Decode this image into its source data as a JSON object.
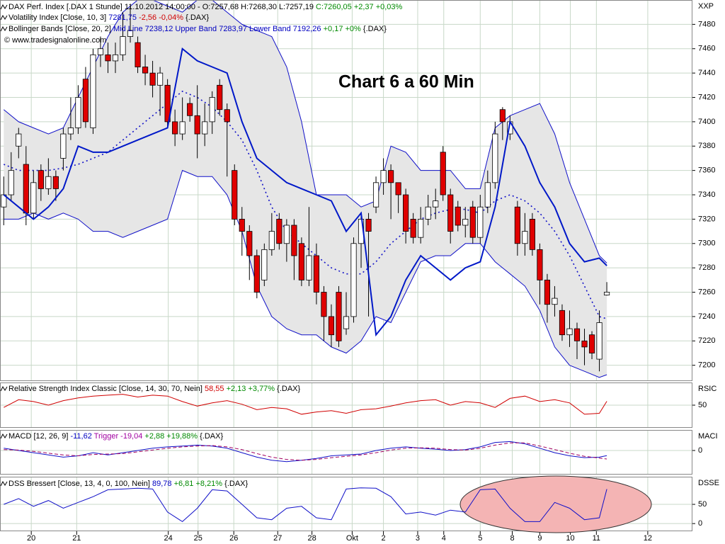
{
  "chart_data": [
    {
      "type": "candlestick",
      "title": "Chart 6 a 60 Min",
      "header": [
        [
          {
            "text": "DAX Perf. Index [.DAX  1 Stunde] 11.10.2012 14:00:00 - O:7257,68 H:7268,30 L:7257,19 ",
            "color": "#000000"
          },
          {
            "text": "C:7260,05 +2,37 +0,03%",
            "color": "#008a00"
          }
        ],
        [
          {
            "text": "Volatility Index [Close, 10, 3] ",
            "color": "#000000"
          },
          {
            "text": "7281,75 ",
            "color": "#0000c0"
          },
          {
            "text": "-2,56 -0,04% ",
            "color": "#d00000"
          },
          {
            "text": "{.DAX}",
            "color": "#000000"
          }
        ],
        [
          {
            "text": "Bollinger Bands [Close, 20, 2] ",
            "color": "#000000"
          },
          {
            "text": "Mid Line 7238,12 Upper Band 7283,97 Lower Band 7192,26 ",
            "color": "#0000c0"
          },
          {
            "text": "+0,17 +0% ",
            "color": "#008a00"
          },
          {
            "text": "{.DAX}",
            "color": "#000000"
          }
        ]
      ],
      "copyright": "© www.tradesignalonline.com",
      "axis_label": "XXP",
      "xlim": [
        -0.5,
        92.5
      ],
      "xticks": [
        {
          "value": 3.7,
          "label": "20"
        },
        {
          "value": 9.8,
          "label": "21"
        },
        {
          "value": 22.1,
          "label": "24"
        },
        {
          "value": 26.1,
          "label": "25"
        },
        {
          "value": 30.9,
          "label": "26"
        },
        {
          "value": 36.8,
          "label": "27"
        },
        {
          "value": 41.4,
          "label": "28"
        },
        {
          "value": 46.8,
          "label": "Okt"
        },
        {
          "value": 51.0,
          "label": "2"
        },
        {
          "value": 55.6,
          "label": "3"
        },
        {
          "value": 59.1,
          "label": "4"
        },
        {
          "value": 64.0,
          "label": "5"
        },
        {
          "value": 68.3,
          "label": "8"
        },
        {
          "value": 72.0,
          "label": "9"
        },
        {
          "value": 76.1,
          "label": "10"
        },
        {
          "value": 79.6,
          "label": "11"
        },
        {
          "value": 86.5,
          "label": "12"
        }
      ],
      "ylim": [
        7187,
        7500
      ],
      "yticks": [
        7200,
        7220,
        7240,
        7260,
        7280,
        7300,
        7320,
        7340,
        7360,
        7380,
        7400,
        7420,
        7440,
        7460,
        7480
      ],
      "grid": true,
      "up_color": "#ffffff",
      "down_color": "#e00000",
      "open": [
        7330,
        7340,
        7380,
        7365,
        7325,
        7360,
        7345,
        7355,
        7370,
        7390,
        7395,
        7435,
        7395,
        7455,
        7455,
        7450,
        7455,
        7470,
        7465,
        7445,
        7440,
        7430,
        7430,
        7400,
        7390,
        7415,
        7405,
        7390,
        7400,
        7430,
        7410,
        7360,
        7320,
        7310,
        7290,
        7270,
        7295,
        7320,
        7300,
        7315,
        7300,
        7270,
        7290,
        7260,
        7240,
        7260,
        7230,
        7240,
        7300,
        7320,
        7330,
        7350,
        7360,
        7350,
        7340,
        7320,
        7305,
        7320,
        7330,
        7375,
        7340,
        7330,
        7315,
        7330,
        7305,
        7330,
        7350,
        7410,
        7390,
        7330,
        7300,
        7320,
        7295,
        7270,
        7250,
        7245,
        7225,
        7230,
        7220,
        7225,
        7205,
        7257.68
      ],
      "high": [
        7355,
        7375,
        7395,
        7380,
        7360,
        7365,
        7370,
        7360,
        7395,
        7420,
        7430,
        7445,
        7460,
        7470,
        7465,
        7465,
        7490,
        7495,
        7470,
        7455,
        7450,
        7445,
        7435,
        7410,
        7420,
        7420,
        7430,
        7415,
        7425,
        7435,
        7415,
        7365,
        7330,
        7315,
        7295,
        7300,
        7325,
        7325,
        7320,
        7320,
        7305,
        7330,
        7300,
        7265,
        7250,
        7265,
        7260,
        7305,
        7325,
        7325,
        7355,
        7370,
        7365,
        7350,
        7345,
        7325,
        7330,
        7340,
        7345,
        7380,
        7345,
        7335,
        7330,
        7335,
        7340,
        7360,
        7400,
        7412,
        7405,
        7335,
        7325,
        7325,
        7300,
        7275,
        7265,
        7250,
        7245,
        7235,
        7230,
        7228,
        7245,
        7268.3
      ],
      "low": [
        7315,
        7335,
        7370,
        7315,
        7320,
        7335,
        7340,
        7335,
        7360,
        7385,
        7390,
        7395,
        7390,
        7445,
        7440,
        7440,
        7450,
        7465,
        7440,
        7430,
        7420,
        7405,
        7395,
        7380,
        7385,
        7400,
        7370,
        7380,
        7390,
        7405,
        7355,
        7315,
        7290,
        7270,
        7255,
        7265,
        7290,
        7295,
        7285,
        7270,
        7265,
        7265,
        7250,
        7220,
        7215,
        7215,
        7225,
        7235,
        7280,
        7240,
        7325,
        7340,
        7320,
        7325,
        7300,
        7300,
        7300,
        7315,
        7320,
        7335,
        7300,
        7310,
        7305,
        7300,
        7300,
        7325,
        7345,
        7385,
        7385,
        7290,
        7290,
        7290,
        7250,
        7235,
        7240,
        7220,
        7215,
        7205,
        7200,
        7205,
        7195,
        7257.19
      ],
      "close": [
        7340,
        7360,
        7390,
        7325,
        7350,
        7345,
        7355,
        7345,
        7390,
        7395,
        7420,
        7400,
        7455,
        7460,
        7450,
        7455,
        7470,
        7475,
        7445,
        7440,
        7430,
        7440,
        7400,
        7390,
        7400,
        7405,
        7390,
        7400,
        7420,
        7410,
        7400,
        7320,
        7310,
        7290,
        7260,
        7295,
        7310,
        7300,
        7315,
        7290,
        7270,
        7290,
        7260,
        7240,
        7225,
        7220,
        7240,
        7300,
        7320,
        7310,
        7350,
        7360,
        7350,
        7340,
        7310,
        7305,
        7320,
        7330,
        7335,
        7340,
        7310,
        7315,
        7320,
        7305,
        7330,
        7350,
        7390,
        7400,
        7400,
        7300,
        7310,
        7295,
        7270,
        7250,
        7255,
        7225,
        7230,
        7220,
        7215,
        7210,
        7235,
        7260.05
      ],
      "bands": {
        "x": [
          0,
          2,
          4,
          6,
          8,
          10,
          12,
          14,
          16,
          18,
          20,
          22,
          24,
          26,
          28,
          30,
          32,
          34,
          36,
          38,
          40,
          42,
          44,
          46,
          48,
          50,
          52,
          54,
          56,
          58,
          60,
          62,
          64,
          66,
          68,
          70,
          72,
          74,
          76,
          78,
          80,
          81
        ],
        "upper": [
          7410,
          7400,
          7395,
          7390,
          7395,
          7420,
          7445,
          7470,
          7490,
          7500,
          7500,
          7495,
          7490,
          7500,
          7500,
          7490,
          7480,
          7475,
          7470,
          7445,
          7400,
          7340,
          7340,
          7340,
          7330,
          7335,
          7380,
          7375,
          7360,
          7360,
          7360,
          7345,
          7345,
          7395,
          7405,
          7410,
          7415,
          7390,
          7350,
          7320,
          7290,
          7283.97
        ],
        "mid": [
          7365,
          7360,
          7360,
          7360,
          7362,
          7365,
          7370,
          7375,
          7385,
          7395,
          7405,
          7415,
          7425,
          7420,
          7412,
          7400,
          7385,
          7360,
          7330,
          7310,
          7300,
          7290,
          7280,
          7275,
          7275,
          7285,
          7300,
          7310,
          7320,
          7325,
          7328,
          7328,
          7325,
          7335,
          7340,
          7335,
          7325,
          7310,
          7290,
          7265,
          7240,
          7238.12
        ],
        "lower": [
          7320,
          7320,
          7325,
          7320,
          7325,
          7320,
          7310,
          7310,
          7305,
          7310,
          7315,
          7320,
          7360,
          7355,
          7355,
          7340,
          7310,
          7265,
          7240,
          7230,
          7225,
          7225,
          7215,
          7210,
          7220,
          7240,
          7235,
          7260,
          7285,
          7290,
          7290,
          7300,
          7300,
          7285,
          7275,
          7265,
          7245,
          7215,
          7200,
          7195,
          7190,
          7192.26
        ],
        "color": "#1010c8",
        "fill": "#e6e6e6"
      },
      "volatility": {
        "x": [
          0,
          2,
          4,
          6,
          8,
          10,
          12,
          14,
          16,
          18,
          20,
          22,
          24,
          26,
          28,
          30,
          32,
          34,
          36,
          38,
          40,
          42,
          44,
          46,
          48,
          50,
          52,
          54,
          56,
          58,
          60,
          62,
          64,
          66,
          68,
          70,
          72,
          74,
          76,
          78,
          80,
          81
        ],
        "values": [
          7340,
          7330,
          7320,
          7330,
          7345,
          7380,
          7375,
          7375,
          7380,
          7385,
          7390,
          7395,
          7460,
          7450,
          7445,
          7440,
          7400,
          7370,
          7360,
          7350,
          7345,
          7340,
          7335,
          7310,
          7325,
          7225,
          7240,
          7270,
          7290,
          7280,
          7270,
          7280,
          7285,
          7330,
          7400,
          7380,
          7350,
          7330,
          7300,
          7285,
          7288,
          7281.75
        ],
        "color": "#0018c8"
      }
    },
    {
      "type": "line",
      "header": [
        [
          {
            "text": "Relative Strength Index Classic [Close, 14, 30, 70, Nein] ",
            "color": "#000000"
          },
          {
            "text": "58,55 ",
            "color": "#d00000"
          },
          {
            "text": "+2,13 +3,77% ",
            "color": "#008a00"
          },
          {
            "text": "{.DAX}",
            "color": "#000000"
          }
        ]
      ],
      "axis_label": "RSIC",
      "ylim": [
        0,
        100
      ],
      "yticks": [
        50
      ],
      "x": [
        0,
        2,
        4,
        6,
        8,
        10,
        12,
        14,
        16,
        18,
        20,
        22,
        24,
        26,
        28,
        30,
        32,
        34,
        36,
        38,
        40,
        42,
        44,
        46,
        48,
        50,
        52,
        54,
        56,
        58,
        60,
        62,
        64,
        66,
        68,
        70,
        72,
        74,
        76,
        78,
        80,
        81
      ],
      "series": [
        {
          "color": "#d00000",
          "dash": false,
          "values": [
            45,
            62,
            58,
            50,
            60,
            66,
            70,
            72,
            74,
            68,
            72,
            70,
            58,
            48,
            55,
            60,
            52,
            40,
            45,
            42,
            30,
            35,
            38,
            32,
            40,
            42,
            48,
            55,
            60,
            62,
            50,
            58,
            55,
            45,
            65,
            70,
            58,
            62,
            55,
            30,
            32,
            58.55
          ]
        }
      ]
    },
    {
      "type": "line",
      "header": [
        [
          {
            "text": "MACD [12, 26, 9] ",
            "color": "#000000"
          },
          {
            "text": "-11,62 ",
            "color": "#0000c0"
          },
          {
            "text": "Trigger -19,04 ",
            "color": "#a000a0"
          },
          {
            "text": "+2,88 +19,88% ",
            "color": "#008a00"
          },
          {
            "text": "{.DAX}",
            "color": "#000000"
          }
        ]
      ],
      "axis_label": "MACI",
      "ylim": [
        -54,
        46
      ],
      "yticks": [
        0
      ],
      "x": [
        0,
        2,
        4,
        6,
        8,
        10,
        12,
        14,
        16,
        18,
        20,
        22,
        24,
        26,
        28,
        30,
        32,
        34,
        36,
        38,
        40,
        42,
        44,
        46,
        48,
        50,
        52,
        54,
        56,
        58,
        60,
        62,
        64,
        66,
        68,
        70,
        72,
        74,
        76,
        78,
        80,
        81
      ],
      "series": [
        {
          "color": "#1010c8",
          "dash": false,
          "values": [
            5,
            0,
            -5,
            -10,
            -15,
            -12,
            -5,
            -10,
            -5,
            0,
            5,
            8,
            10,
            12,
            10,
            5,
            -5,
            -15,
            -22,
            -25,
            -22,
            -18,
            -12,
            -10,
            -8,
            0,
            5,
            8,
            5,
            3,
            0,
            2,
            8,
            18,
            20,
            15,
            5,
            -5,
            -12,
            -16,
            -15,
            -11.62
          ]
        },
        {
          "color": "#a00060",
          "dash": true,
          "values": [
            2,
            1,
            -2,
            -6,
            -10,
            -12,
            -9,
            -8,
            -7,
            -3,
            1,
            5,
            8,
            10,
            11,
            8,
            2,
            -7,
            -15,
            -20,
            -22,
            -20,
            -16,
            -13,
            -10,
            -5,
            1,
            5,
            6,
            5,
            2,
            1,
            5,
            12,
            17,
            17,
            10,
            2,
            -6,
            -13,
            -17,
            -19.04
          ]
        }
      ]
    },
    {
      "type": "line",
      "header": [
        [
          {
            "text": "DSS Bressert [Close, 13, 4, 0, 100, Nein] ",
            "color": "#000000"
          },
          {
            "text": "89,78 ",
            "color": "#0000c0"
          },
          {
            "text": "+6,81 +8,21% ",
            "color": "#008a00"
          },
          {
            "text": "{.DAX}",
            "color": "#000000"
          }
        ]
      ],
      "axis_label": "DSSE",
      "ylim": [
        -20,
        122
      ],
      "yticks": [
        0,
        50
      ],
      "x": [
        0,
        2,
        4,
        6,
        8,
        10,
        12,
        14,
        16,
        18,
        20,
        22,
        24,
        26,
        28,
        30,
        32,
        34,
        36,
        38,
        40,
        42,
        44,
        46,
        48,
        50,
        52,
        54,
        56,
        58,
        60,
        62,
        64,
        66,
        68,
        70,
        72,
        74,
        76,
        78,
        80,
        81
      ],
      "series": [
        {
          "color": "#1010c8",
          "dash": false,
          "values": [
            50,
            65,
            45,
            60,
            40,
            55,
            70,
            88,
            90,
            92,
            90,
            30,
            5,
            40,
            88,
            85,
            50,
            15,
            10,
            40,
            45,
            15,
            10,
            90,
            93,
            92,
            70,
            25,
            30,
            22,
            35,
            30,
            88,
            90,
            40,
            5,
            5,
            55,
            40,
            10,
            15,
            89.78
          ]
        }
      ]
    }
  ]
}
